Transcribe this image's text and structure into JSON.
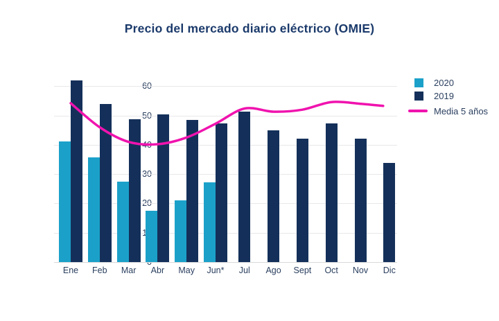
{
  "title": "Precio del mercado diario eléctrico (OMIE)",
  "legend": {
    "items": [
      {
        "label": "2020",
        "swatch": "square",
        "color": "#1BA1C9"
      },
      {
        "label": "2019",
        "swatch": "square",
        "color": "#14305A"
      },
      {
        "label": "Media 5 años",
        "swatch": "line",
        "color": "#F013AE"
      }
    ]
  },
  "colors": {
    "series_2020": "#1BA1C9",
    "series_2019": "#14305A",
    "media_line": "#F013AE",
    "title_text": "#1b3a6b",
    "axis_text": "#2a3f5f",
    "gridline": "#e8e8ec"
  },
  "chart_data": {
    "type": "bar",
    "title": "Precio del mercado diario eléctrico (OMIE)",
    "categories": [
      "Ene",
      "Feb",
      "Mar",
      "Abr",
      "May",
      "Jun*",
      "Jul",
      "Ago",
      "Sept",
      "Oct",
      "Nov",
      "Dic"
    ],
    "series": [
      {
        "name": "2020",
        "type": "bar",
        "color": "#1BA1C9",
        "values": [
          41.1,
          35.7,
          27.5,
          17.4,
          21.0,
          27.2,
          null,
          null,
          null,
          null,
          null,
          null
        ]
      },
      {
        "name": "2019",
        "type": "bar",
        "color": "#14305A",
        "values": [
          62.0,
          54.0,
          48.8,
          50.3,
          48.4,
          47.2,
          51.4,
          44.9,
          42.1,
          47.2,
          42.2,
          33.8
        ]
      },
      {
        "name": "Media 5 años",
        "type": "line",
        "color": "#F013AE",
        "values": [
          54.2,
          46.0,
          41.0,
          40.2,
          42.5,
          47.2,
          52.4,
          51.3,
          52.0,
          54.6,
          54.0,
          53.3
        ]
      }
    ],
    "xlabel": "",
    "ylabel": "",
    "ylim": [
      0,
      64.1
    ],
    "yticks": [
      0,
      10,
      20,
      30,
      40,
      50,
      60
    ],
    "grid": true,
    "legend_position": "right-top"
  }
}
